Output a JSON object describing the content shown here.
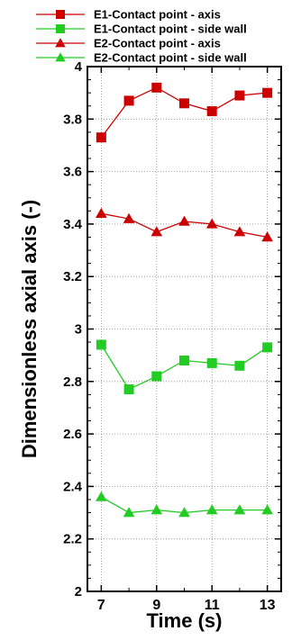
{
  "chart_data": {
    "type": "line",
    "xlabel": "Time (s)",
    "ylabel": "Dimensionless axial axis (-)",
    "xlim": [
      6.5,
      13.5
    ],
    "ylim": [
      2,
      4
    ],
    "xticks": [
      "7",
      "9",
      "11",
      "13"
    ],
    "yticks": [
      "2",
      "2.2",
      "2.4",
      "2.6",
      "2.8",
      "3",
      "3.2",
      "3.4",
      "3.6",
      "3.8",
      "4"
    ],
    "grid": true,
    "legend_position": "top",
    "x": [
      7,
      8,
      9,
      10,
      11,
      12,
      13
    ],
    "series": [
      {
        "name": "E1-Contact point - axis",
        "color": "#cc0000",
        "marker": "square",
        "values": [
          3.73,
          3.87,
          3.92,
          3.86,
          3.83,
          3.89,
          3.9
        ]
      },
      {
        "name": "E1-Contact point - side wall",
        "color": "#22cc22",
        "marker": "square",
        "values": [
          2.94,
          2.77,
          2.82,
          2.88,
          2.87,
          2.86,
          2.93
        ]
      },
      {
        "name": "E2-Contact point - axis",
        "color": "#cc0000",
        "marker": "triangle",
        "values": [
          3.44,
          3.42,
          3.37,
          3.41,
          3.4,
          3.37,
          3.35
        ]
      },
      {
        "name": "E2-Contact point - side wall",
        "color": "#22cc22",
        "marker": "triangle",
        "values": [
          2.36,
          2.3,
          2.31,
          2.3,
          2.31,
          2.31,
          2.31
        ]
      }
    ]
  }
}
